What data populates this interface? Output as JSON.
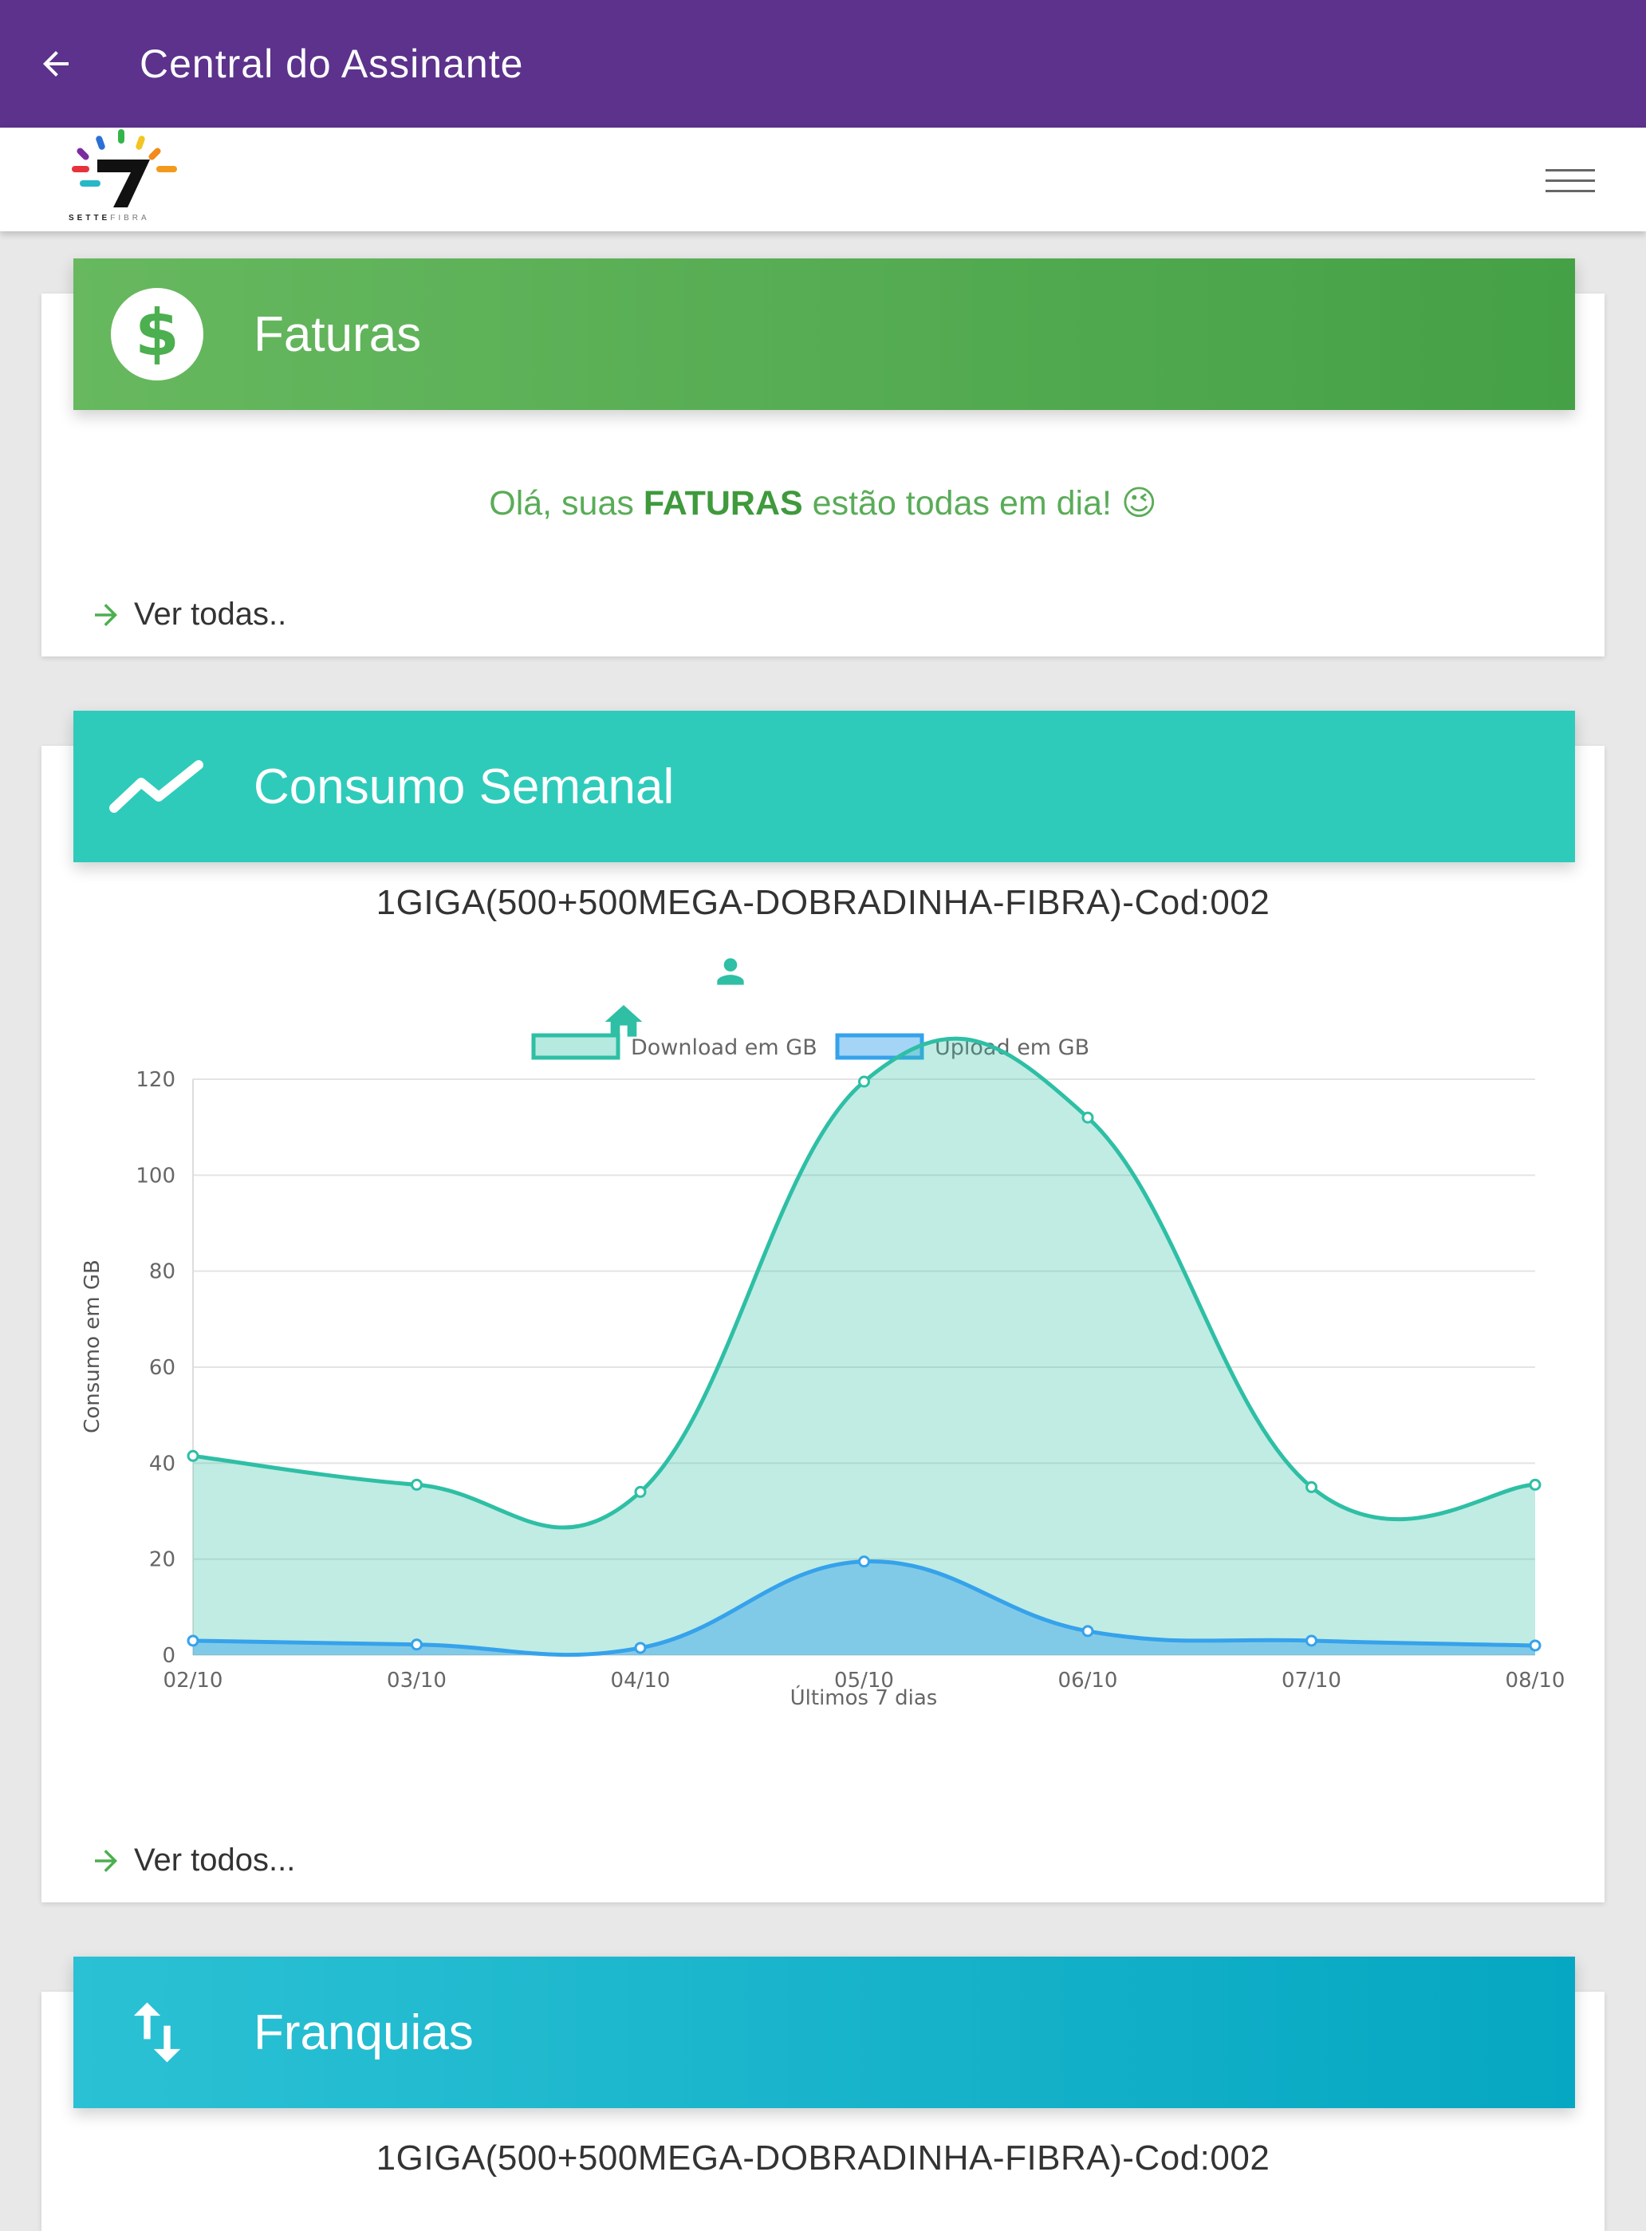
{
  "appbar": {
    "title": "Central do Assinante",
    "back_icon": "arrow-left-icon"
  },
  "brand": {
    "logo_name": "SETTE",
    "logo_sub": "FIBRA",
    "menu_icon": "hamburger-icon"
  },
  "faturas": {
    "title": "Faturas",
    "icon": "dollar-icon",
    "message_prefix": "Olá, suas ",
    "message_bold": "FATURAS",
    "message_suffix": " estão todas em dia! 😉",
    "link": "Ver todas.."
  },
  "consumo": {
    "title": "Consumo Semanal",
    "icon": "trending-up-icon",
    "plan": "1GIGA(500+500MEGA-DOBRADINHA-FIBRA)-Cod:002",
    "link": "Ver todos..."
  },
  "franquias": {
    "title": "Franquias",
    "icon": "swap-vertical-icon",
    "plan": "1GIGA(500+500MEGA-DOBRADINHA-FIBRA)-Cod:002"
  },
  "colors": {
    "appbar": "#5c328c",
    "faturas": "#4caf50",
    "consumo": "#2ecbbb",
    "franquias": "#06a7c2",
    "download": "#2ebfa5",
    "upload": "#36a2eb"
  },
  "chart_data": {
    "type": "area",
    "xlabel": "Últimos 7 dias",
    "ylabel": "Consumo em GB",
    "categories": [
      "02/10",
      "03/10",
      "04/10",
      "05/10",
      "06/10",
      "07/10",
      "08/10"
    ],
    "ylim": [
      0,
      120
    ],
    "yticks": [
      0,
      20,
      40,
      60,
      80,
      100,
      120
    ],
    "grid": true,
    "legend_position": "top",
    "series": [
      {
        "name": "Download em GB",
        "values": [
          41.5,
          35.5,
          34,
          119.5,
          112,
          35,
          35.5
        ]
      },
      {
        "name": "Upload em GB",
        "values": [
          3,
          2.2,
          1.5,
          19.5,
          5,
          3,
          2
        ]
      }
    ]
  }
}
